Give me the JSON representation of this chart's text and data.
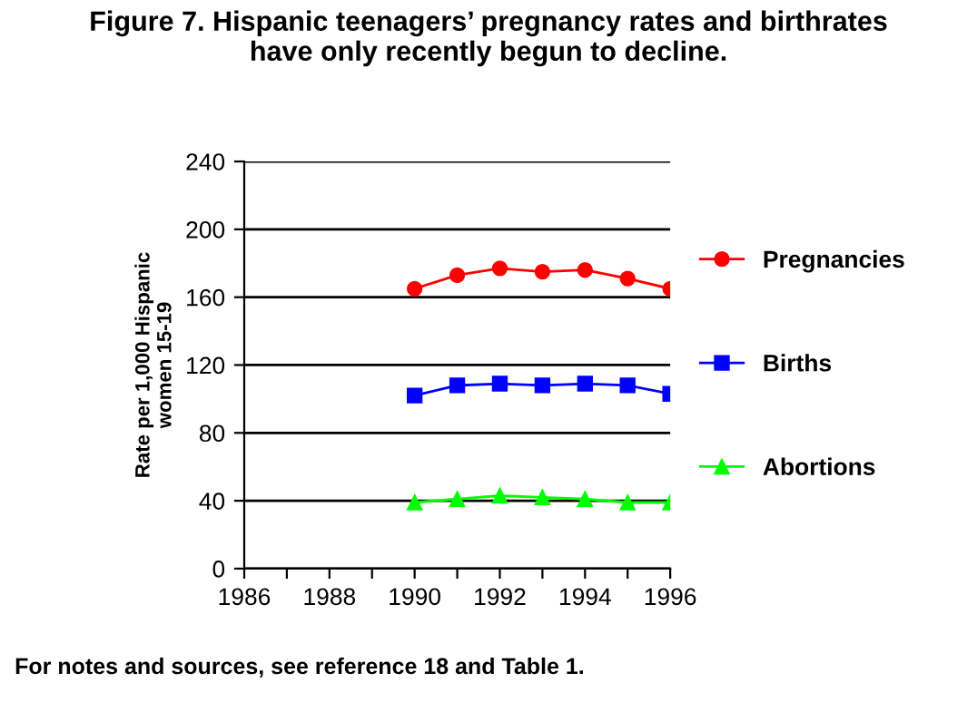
{
  "chart_data": {
    "type": "line",
    "title": "Figure 7. Hispanic teenagers’ pregnancy rates and birthrates\nhave only recently begun to decline.",
    "ylabel": "Rate per 1,000 Hispanic\nwomen 15-19",
    "x": [
      1990,
      1991,
      1992,
      1993,
      1994,
      1995,
      1996
    ],
    "series": [
      {
        "name": "Pregnancies",
        "color": "#ff0000",
        "marker": "circle",
        "values": [
          165,
          173,
          177,
          175,
          176,
          171,
          165
        ]
      },
      {
        "name": "Births",
        "color": "#0000ff",
        "marker": "square",
        "values": [
          102,
          108,
          109,
          108,
          109,
          108,
          103
        ]
      },
      {
        "name": "Abortions",
        "color": "#00ff00",
        "marker": "triangle",
        "values": [
          39,
          41,
          43,
          42,
          41,
          39,
          39
        ]
      }
    ],
    "xlim": [
      1986,
      1996
    ],
    "xticks": [
      1986,
      {
        "value": 1987,
        "label": null
      },
      1988,
      {
        "value": 1989,
        "label": null
      },
      1990,
      {
        "value": 1991,
        "label": null
      },
      1992,
      {
        "value": 1993,
        "label": null
      },
      1994,
      {
        "value": 1995,
        "label": null
      },
      1996
    ],
    "ylim": [
      0,
      240
    ],
    "yticks": [
      0,
      40,
      80,
      120,
      160,
      200,
      240
    ],
    "grid": "y",
    "legend": "right",
    "annotations": [
      "For notes and sources, see reference 18 and Table 1."
    ]
  }
}
